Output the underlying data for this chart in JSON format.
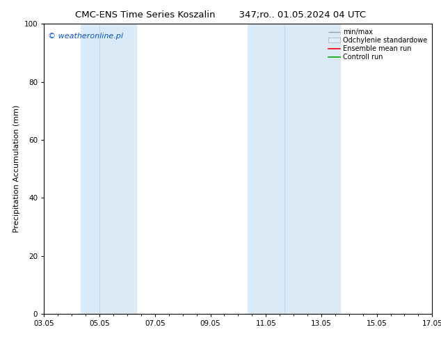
{
  "title_left": "CMC-ENS Time Series Koszalin",
  "title_right": "347;ro.. 01.05.2024 04 UTC",
  "ylabel": "Precipitation Accumulation (mm)",
  "ylim": [
    0,
    100
  ],
  "yticks": [
    0,
    20,
    40,
    60,
    80,
    100
  ],
  "xtick_labels": [
    "03.05",
    "05.05",
    "07.05",
    "09.05",
    "11.05",
    "13.05",
    "15.05",
    "17.05"
  ],
  "xtick_positions": [
    0,
    2,
    4,
    6,
    8,
    10,
    12,
    14
  ],
  "shade_regions": [
    {
      "x_start": 1.33,
      "x_end": 2.0,
      "color": "#daeaf7"
    },
    {
      "x_start": 2.0,
      "x_end": 3.33,
      "color": "#daeaf7"
    },
    {
      "x_start": 7.33,
      "x_end": 8.67,
      "color": "#daeaf7"
    },
    {
      "x_start": 8.67,
      "x_end": 10.67,
      "color": "#daeaf7"
    }
  ],
  "shade_dividers": [
    2.0,
    8.67
  ],
  "legend_labels": [
    "min/max",
    "Odchylenie standardowe",
    "Ensemble mean run",
    "Controll run"
  ],
  "legend_line_colors": [
    "#999999",
    "#cccccc",
    "#ff0000",
    "#00aa00"
  ],
  "watermark_text": "© weatheronline.pl",
  "watermark_color": "#0055cc",
  "background_color": "#ffffff",
  "title_fontsize": 9.5,
  "ylabel_fontsize": 8,
  "tick_fontsize": 7.5,
  "legend_fontsize": 7,
  "watermark_fontsize": 8
}
